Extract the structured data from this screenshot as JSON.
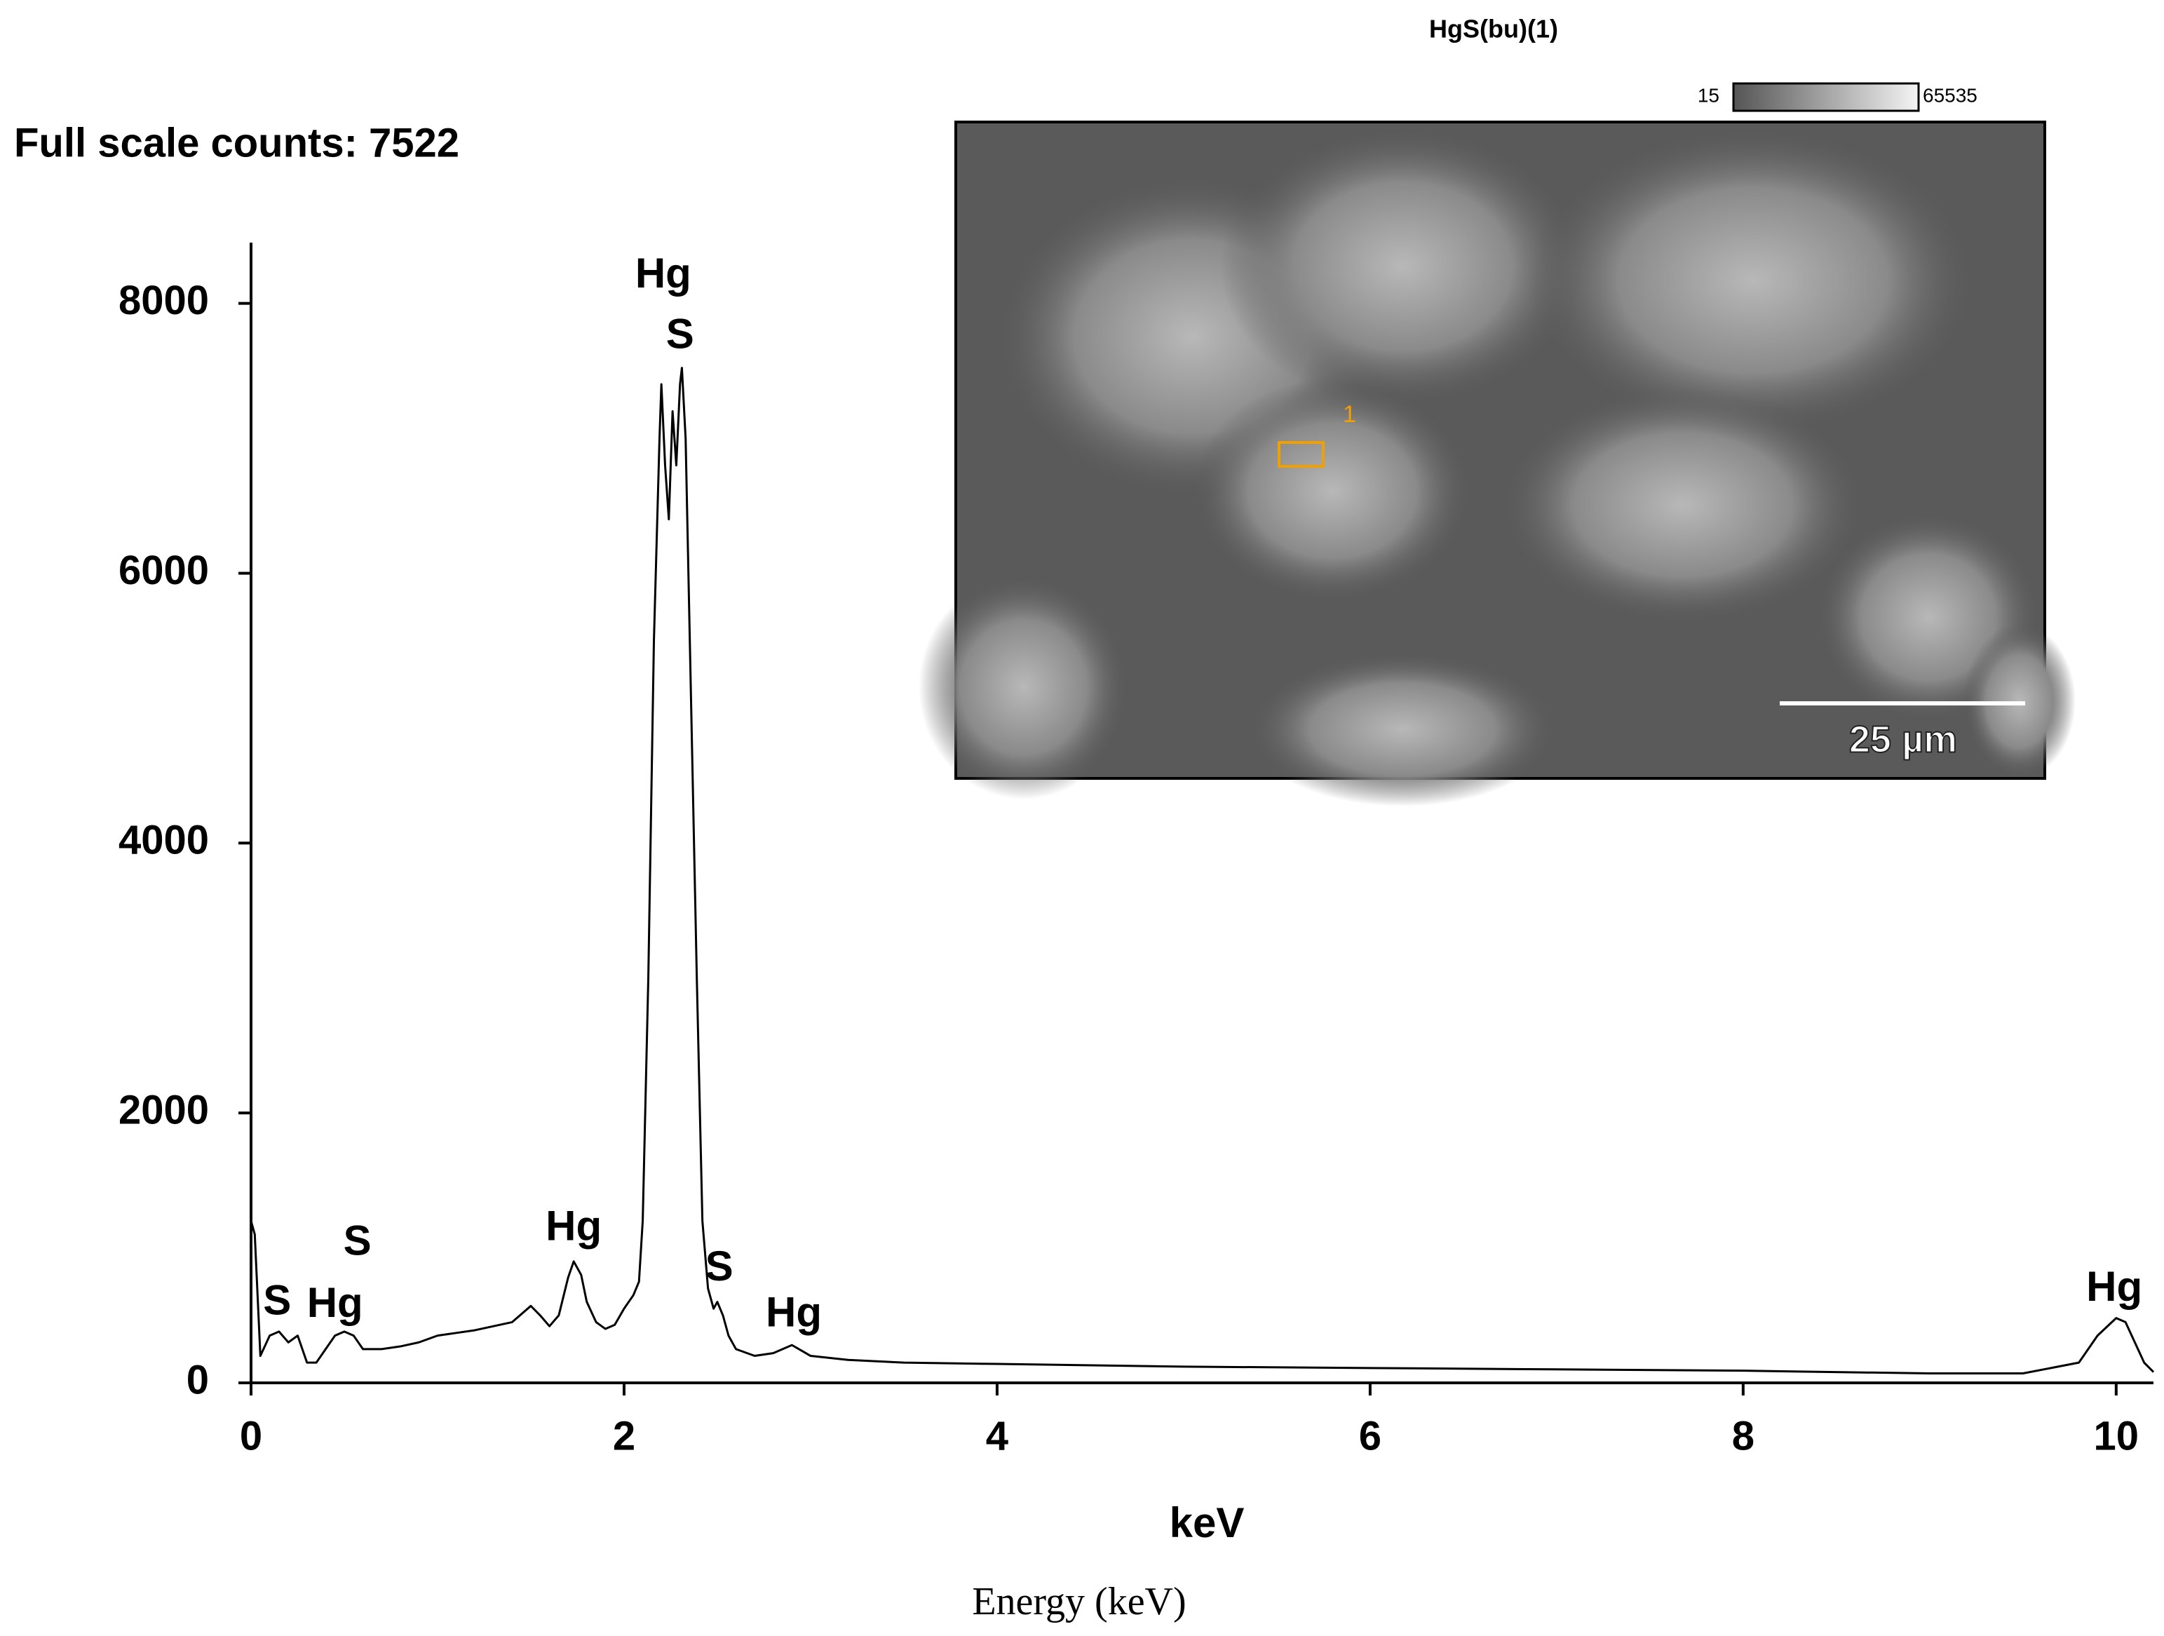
{
  "chart_data": {
    "type": "line",
    "title": "Full scale counts: 7522",
    "x_label": "keV",
    "caption": "Energy (keV)",
    "x": [
      0,
      0.02,
      0.05,
      0.1,
      0.15,
      0.2,
      0.25,
      0.3,
      0.35,
      0.4,
      0.45,
      0.5,
      0.55,
      0.6,
      0.7,
      0.8,
      0.9,
      1.0,
      1.1,
      1.2,
      1.3,
      1.4,
      1.5,
      1.55,
      1.6,
      1.65,
      1.7,
      1.73,
      1.77,
      1.8,
      1.85,
      1.9,
      1.95,
      2.0,
      2.05,
      2.08,
      2.1,
      2.13,
      2.16,
      2.19,
      2.2,
      2.22,
      2.24,
      2.26,
      2.28,
      2.3,
      2.31,
      2.33,
      2.36,
      2.39,
      2.42,
      2.45,
      2.48,
      2.5,
      2.53,
      2.56,
      2.6,
      2.7,
      2.8,
      2.9,
      3.0,
      3.2,
      3.5,
      4,
      5,
      6,
      7,
      8,
      9,
      9.5,
      9.8,
      9.9,
      10.0,
      10.05,
      10.1,
      10.15,
      10.2
    ],
    "series": [
      {
        "name": "Spectrum",
        "color": "#000000",
        "values": [
          1200,
          1100,
          200,
          350,
          380,
          300,
          350,
          150,
          150,
          250,
          350,
          380,
          350,
          250,
          250,
          270,
          300,
          350,
          370,
          390,
          420,
          450,
          570,
          500,
          420,
          500,
          780,
          900,
          800,
          600,
          450,
          400,
          430,
          550,
          650,
          750,
          1200,
          3000,
          5500,
          7000,
          7400,
          6800,
          6400,
          7200,
          6800,
          7400,
          7522,
          7000,
          5000,
          3000,
          1200,
          700,
          550,
          600,
          500,
          350,
          250,
          200,
          220,
          280,
          200,
          170,
          150,
          140,
          120,
          110,
          100,
          90,
          70,
          70,
          150,
          350,
          480,
          450,
          300,
          150,
          80
        ]
      }
    ],
    "xlim": [
      0,
      10.2
    ],
    "xticks": [
      0,
      2,
      4,
      6,
      8,
      10
    ],
    "ylim": [
      0,
      8450
    ],
    "yticks": [
      0,
      2000,
      4000,
      6000,
      8000
    ],
    "annotations": [
      {
        "text": "Hg",
        "x": 2.21,
        "y": 8200
      },
      {
        "text": "S",
        "x": 2.3,
        "y": 7750
      },
      {
        "text": "S",
        "x": 0.57,
        "y": 1030
      },
      {
        "text": "S",
        "x": 0.14,
        "y": 590
      },
      {
        "text": "Hg",
        "x": 0.45,
        "y": 570
      },
      {
        "text": "Hg",
        "x": 1.73,
        "y": 1140
      },
      {
        "text": "S",
        "x": 2.51,
        "y": 840
      },
      {
        "text": "Hg",
        "x": 2.91,
        "y": 500
      },
      {
        "text": "Hg",
        "x": 9.99,
        "y": 690
      }
    ]
  },
  "inset": {
    "title": "HgS(bu)(1)",
    "scale_min": "15",
    "scale_max": "65535",
    "region_label": "1",
    "scale_bar": "25 µm"
  }
}
